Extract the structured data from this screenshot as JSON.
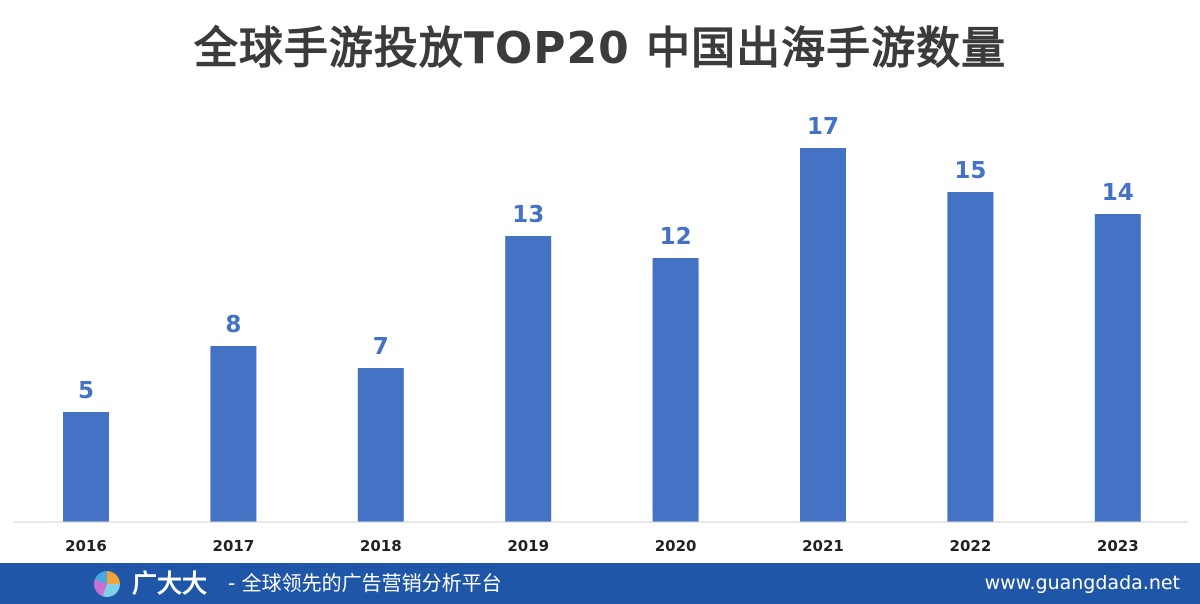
{
  "title": "全球手游投放TOP20 中国出海手游数量",
  "footer": {
    "brand": "广大大",
    "slogan": "- 全球领先的广告营销分析平台",
    "website": "www.guangdada.net"
  },
  "colors": {
    "bar": "#4472c4",
    "bar_label": "#4472c4",
    "title": "#3b3b3b",
    "footer_bg": "#1f56a8"
  },
  "chart_data": {
    "type": "bar",
    "title": "全球手游投放TOP20 中国出海手游数量",
    "xlabel": "",
    "ylabel": "",
    "categories": [
      "2016",
      "2017",
      "2018",
      "2019",
      "2020",
      "2021",
      "2022",
      "2023"
    ],
    "values": [
      5,
      8,
      7,
      13,
      12,
      17,
      15,
      14
    ],
    "ylim": [
      0,
      17
    ],
    "grid": false,
    "legend": "none",
    "data_labels": true
  }
}
